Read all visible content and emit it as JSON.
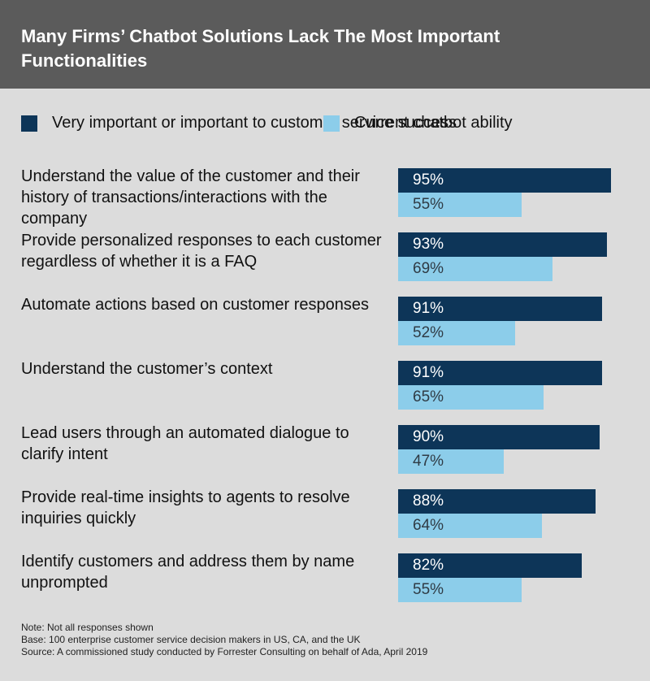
{
  "title": "Many Firms’ Chatbot Solutions Lack The Most Important Functionalities",
  "legend": {
    "primary": "Very important or important to customer service success",
    "secondary": "Current chatbot ability"
  },
  "colors": {
    "primary": "#0d3558",
    "secondary": "#8ccdea",
    "header_bg": "#5b5b5b",
    "page_bg": "#dcdcdc"
  },
  "chart_data": {
    "type": "bar",
    "orientation": "horizontal",
    "title": "Many Firms’ Chatbot Solutions Lack The Most Important Functionalities",
    "categories": [
      "Understand the value of the customer and their history of transactions/interactions with the company",
      "Provide personalized responses to each customer regardless of whether it is a FAQ",
      "Automate actions based on customer responses",
      "Understand the customer’s context",
      "Lead users through an automated dialogue to clarify intent",
      "Provide real-time insights to agents to resolve inquiries quickly",
      "Identify customers and address them by name unprompted"
    ],
    "series": [
      {
        "name": "Very important or important to customer service success",
        "values": [
          95,
          93,
          91,
          91,
          90,
          88,
          82
        ],
        "labels": [
          "95%",
          "93%",
          "91%",
          "91%",
          "90%",
          "88%",
          "82%"
        ]
      },
      {
        "name": "Current chatbot ability",
        "values": [
          55,
          69,
          52,
          65,
          47,
          64,
          55
        ],
        "labels": [
          "55%",
          "69%",
          "52%",
          "65%",
          "47%",
          "64%",
          "55%"
        ]
      }
    ],
    "xlim": [
      0,
      100
    ],
    "unit": "%",
    "legend_position": "top"
  },
  "notes": [
    "Note: Not all responses shown",
    "Base: 100 enterprise customer service decision makers in US, CA, and the UK",
    "Source: A commissioned study conducted by Forrester Consulting on behalf of Ada, April 2019"
  ]
}
